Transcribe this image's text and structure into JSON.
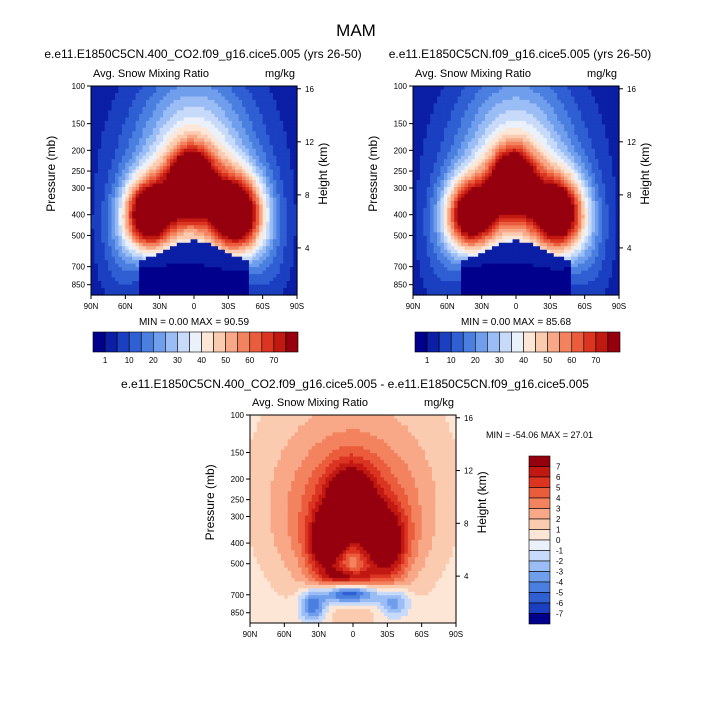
{
  "figure": {
    "title": "MAM",
    "heatmap_palette_blue_to_red": [
      "#00008c",
      "#0a1fa5",
      "#1a3fc0",
      "#2f5fd2",
      "#4a7fe0",
      "#6f9eec",
      "#9bbdf5",
      "#c7daf9",
      "#eaf1fb",
      "#fde6d6",
      "#fbcbb0",
      "#f8a886",
      "#f3835f",
      "#ea5c3c",
      "#db3522",
      "#c21812",
      "#96000e"
    ],
    "land_color": "#ffffff",
    "axis_label_left": "Pressure (mb)",
    "axis_label_right": "Height (km)"
  },
  "chart_data": [
    {
      "type": "heatmap",
      "case": "e.e11.E1850C5CN.400_CO2.f09_g16.cice5.005 (yrs 26-50)",
      "variable": "Avg. Snow Mixing Ratio",
      "units": "mg/kg",
      "x_ticks": [
        "90N",
        "60N",
        "30N",
        "0",
        "30S",
        "60S",
        "90S"
      ],
      "y_ticks": [
        "100",
        "150",
        "200",
        "250",
        "300",
        "400",
        "500",
        "700",
        "850"
      ],
      "height_ticks": [
        "16",
        "12",
        "8",
        "4"
      ],
      "xlim": [
        90,
        -90
      ],
      "ylim": [
        1000,
        100
      ],
      "stats": "MIN =   0.00  MAX =  90.59",
      "min": 0.0,
      "max": 90.59,
      "colorbar": {
        "orientation": "horizontal",
        "labels": [
          "1",
          "10",
          "20",
          "30",
          "40",
          "50",
          "60",
          "70"
        ],
        "colors": [
          "#00008c",
          "#0a1fa5",
          "#1a3fc0",
          "#2f5fd2",
          "#4a7fe0",
          "#6f9eec",
          "#9bbdf5",
          "#c7daf9",
          "#eaf1fb",
          "#fde6d6",
          "#fbcbb0",
          "#f8a886",
          "#f3835f",
          "#ea5c3c",
          "#db3522",
          "#c21812",
          "#96000e"
        ]
      }
    },
    {
      "type": "heatmap",
      "case": "e.e11.E1850C5CN.f09_g16.cice5.005 (yrs 26-50)",
      "variable": "Avg. Snow Mixing Ratio",
      "units": "mg/kg",
      "x_ticks": [
        "90N",
        "60N",
        "30N",
        "0",
        "30S",
        "60S",
        "90S"
      ],
      "y_ticks": [
        "100",
        "150",
        "200",
        "250",
        "300",
        "400",
        "500",
        "700",
        "850"
      ],
      "height_ticks": [
        "16",
        "12",
        "8",
        "4"
      ],
      "xlim": [
        90,
        -90
      ],
      "ylim": [
        1000,
        100
      ],
      "stats": "MIN =   0.00  MAX =  85.68",
      "min": 0.0,
      "max": 85.68,
      "colorbar": {
        "orientation": "horizontal",
        "labels": [
          "1",
          "10",
          "20",
          "30",
          "40",
          "50",
          "60",
          "70"
        ],
        "colors": [
          "#00008c",
          "#0a1fa5",
          "#1a3fc0",
          "#2f5fd2",
          "#4a7fe0",
          "#6f9eec",
          "#9bbdf5",
          "#c7daf9",
          "#eaf1fb",
          "#fde6d6",
          "#fbcbb0",
          "#f8a886",
          "#f3835f",
          "#ea5c3c",
          "#db3522",
          "#c21812",
          "#96000e"
        ]
      }
    },
    {
      "type": "heatmap",
      "case": "e.e11.E1850C5CN.400_CO2.f09_g16.cice5.005 - e.e11.E1850C5CN.f09_g16.cice5.005",
      "variable": "Avg. Snow Mixing Ratio",
      "units": "mg/kg",
      "x_ticks": [
        "90N",
        "60N",
        "30N",
        "0",
        "30S",
        "60S",
        "90S"
      ],
      "y_ticks": [
        "100",
        "150",
        "200",
        "250",
        "300",
        "400",
        "500",
        "700",
        "850"
      ],
      "height_ticks": [
        "16",
        "12",
        "8",
        "4"
      ],
      "xlim": [
        90,
        -90
      ],
      "ylim": [
        1000,
        100
      ],
      "stats": "MIN = -54.06  MAX =  27.01",
      "min": -54.06,
      "max": 27.01,
      "colorbar": {
        "orientation": "vertical",
        "labels": [
          "7",
          "6",
          "5",
          "4",
          "3",
          "2",
          "1",
          "0",
          "-1",
          "-2",
          "-3",
          "-4",
          "-5",
          "-6",
          "-7"
        ],
        "colors": [
          "#96000e",
          "#c21812",
          "#db3522",
          "#ea5c3c",
          "#f3835f",
          "#f8a886",
          "#fbcbb0",
          "#fde6d6",
          "#eaf1fb",
          "#c7daf9",
          "#9bbdf5",
          "#6f9eec",
          "#4a7fe0",
          "#2f5fd2",
          "#1a3fc0",
          "#00008c"
        ]
      }
    }
  ]
}
